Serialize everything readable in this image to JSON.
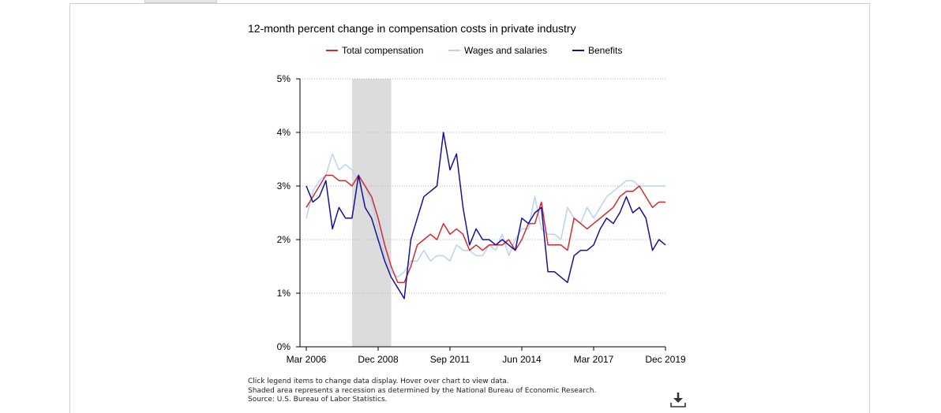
{
  "chart_data": {
    "type": "line",
    "title": "12-month percent change in compensation costs in private industry",
    "x": [
      "Mar 2006",
      "Jun 2006",
      "Sep 2006",
      "Dec 2006",
      "Mar 2007",
      "Jun 2007",
      "Sep 2007",
      "Dec 2007",
      "Mar 2008",
      "Jun 2008",
      "Sep 2008",
      "Dec 2008",
      "Mar 2009",
      "Jun 2009",
      "Sep 2009",
      "Dec 2009",
      "Mar 2010",
      "Jun 2010",
      "Sep 2010",
      "Dec 2010",
      "Mar 2011",
      "Jun 2011",
      "Sep 2011",
      "Dec 2011",
      "Mar 2012",
      "Jun 2012",
      "Sep 2012",
      "Dec 2012",
      "Mar 2013",
      "Jun 2013",
      "Sep 2013",
      "Dec 2013",
      "Mar 2014",
      "Jun 2014",
      "Sep 2014",
      "Dec 2014",
      "Mar 2015",
      "Jun 2015",
      "Sep 2015",
      "Dec 2015",
      "Mar 2016",
      "Jun 2016",
      "Sep 2016",
      "Dec 2016",
      "Mar 2017",
      "Jun 2017",
      "Sep 2017",
      "Dec 2017",
      "Mar 2018",
      "Jun 2018",
      "Sep 2018",
      "Dec 2018",
      "Mar 2019",
      "Jun 2019",
      "Sep 2019",
      "Dec 2019"
    ],
    "x_tick_labels": [
      "Mar 2006",
      "Dec 2008",
      "Sep 2011",
      "Jun 2014",
      "Mar 2017",
      "Dec 2019"
    ],
    "y_tick_labels": [
      "0%",
      "1%",
      "2%",
      "3%",
      "4%",
      "5%"
    ],
    "ylim": [
      0,
      5
    ],
    "y_unit": "%",
    "grid": "horizontal dotted",
    "legend_position": "top",
    "recession": {
      "start": "Dec 2007",
      "end": "Jun 2009"
    },
    "series": [
      {
        "name": "Total compensation",
        "color": "#d42a2f",
        "values": [
          2.6,
          2.8,
          3.0,
          3.2,
          3.2,
          3.1,
          3.1,
          3.0,
          3.2,
          3.0,
          2.8,
          2.4,
          1.9,
          1.5,
          1.2,
          1.2,
          1.5,
          1.9,
          2.0,
          2.1,
          2.0,
          2.3,
          2.1,
          2.2,
          2.1,
          1.8,
          1.9,
          1.8,
          1.9,
          1.9,
          1.9,
          2.0,
          1.8,
          2.0,
          2.3,
          2.3,
          2.7,
          1.9,
          1.9,
          1.9,
          1.8,
          2.4,
          2.3,
          2.2,
          2.3,
          2.4,
          2.5,
          2.6,
          2.8,
          2.9,
          2.9,
          3.0,
          2.8,
          2.6,
          2.7,
          2.7
        ]
      },
      {
        "name": "Wages and salaries",
        "color": "#b9d3f0",
        "values": [
          2.4,
          2.9,
          3.1,
          3.2,
          3.6,
          3.3,
          3.4,
          3.3,
          3.1,
          3.0,
          2.7,
          2.2,
          1.7,
          1.4,
          1.3,
          1.4,
          1.6,
          1.6,
          1.8,
          1.6,
          1.7,
          1.7,
          1.6,
          1.9,
          1.8,
          1.8,
          1.7,
          1.7,
          1.9,
          1.8,
          2.1,
          1.7,
          2.0,
          2.2,
          2.2,
          2.8,
          2.2,
          2.1,
          2.1,
          2.0,
          2.6,
          2.4,
          2.3,
          2.6,
          2.4,
          2.6,
          2.8,
          2.9,
          3.0,
          3.1,
          3.1,
          3.0,
          3.0,
          3.0,
          3.0,
          3.0
        ]
      },
      {
        "name": "Benefits",
        "color": "#14129a",
        "values": [
          3.0,
          2.7,
          2.8,
          3.1,
          2.2,
          2.6,
          2.4,
          2.4,
          3.2,
          2.6,
          2.4,
          2.0,
          1.6,
          1.3,
          1.1,
          0.9,
          2.0,
          2.4,
          2.8,
          2.9,
          3.0,
          4.0,
          3.3,
          3.6,
          2.6,
          1.9,
          2.2,
          2.0,
          2.0,
          1.9,
          2.0,
          1.9,
          1.8,
          2.4,
          2.3,
          2.5,
          2.6,
          1.4,
          1.4,
          1.3,
          1.2,
          1.7,
          1.8,
          1.8,
          1.9,
          2.2,
          2.4,
          2.3,
          2.5,
          2.8,
          2.5,
          2.6,
          2.4,
          1.8,
          2.0,
          1.9
        ]
      }
    ]
  },
  "notes": [
    "Click legend items to change data display. Hover over chart to view data.",
    "Shaded area represents a recession as determined by the National Bureau of Economic Research.",
    "Source: U.S. Bureau of Labor Statistics."
  ],
  "icons": {
    "download": "download-icon"
  }
}
